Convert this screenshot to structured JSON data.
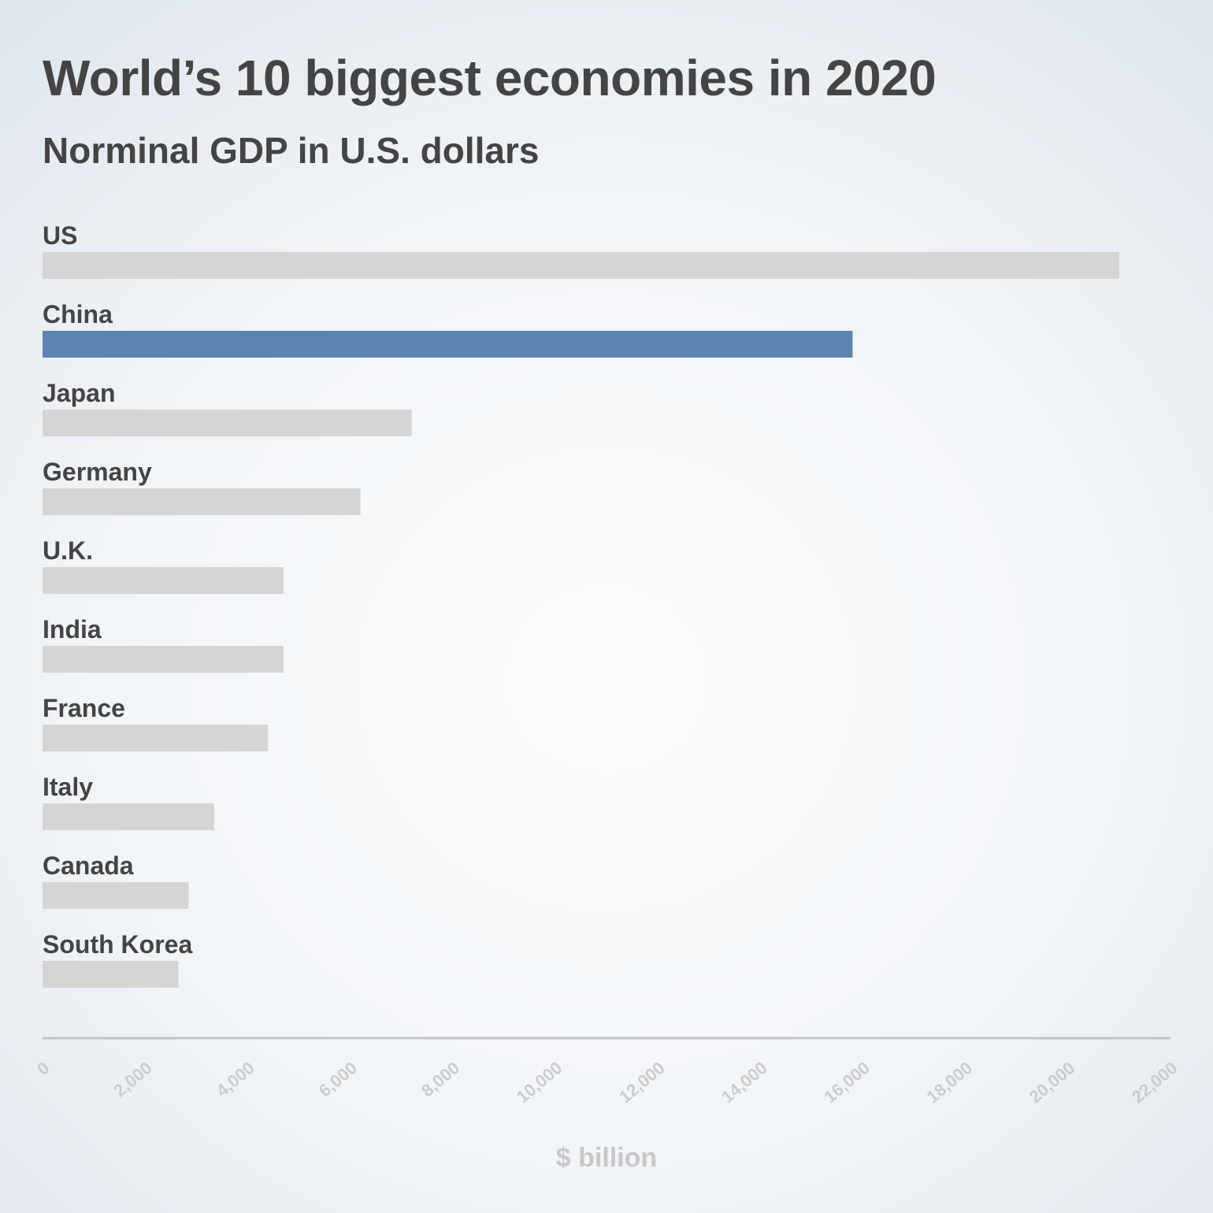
{
  "chart_data": {
    "type": "bar",
    "orientation": "horizontal",
    "title": "World’s 10 biggest economies in 2020",
    "subtitle": "Norminal GDP in U.S. dollars",
    "xlabel": "$ billion",
    "ylabel": "",
    "categories": [
      "US",
      "China",
      "Japan",
      "Germany",
      "U.K.",
      "India",
      "France",
      "Italy",
      "Canada",
      "South Korea"
    ],
    "values": [
      21000,
      15800,
      7200,
      6200,
      4700,
      4700,
      4400,
      3350,
      2850,
      2650
    ],
    "highlight_category": "China",
    "xlim": [
      0,
      22000
    ],
    "xticks": [
      0,
      2000,
      4000,
      6000,
      8000,
      10000,
      12000,
      14000,
      16000,
      18000,
      20000,
      22000
    ],
    "xtick_labels": [
      "0",
      "2,000",
      "4,000",
      "6,000",
      "8,000",
      "10,000",
      "12,000",
      "14,000",
      "16,000",
      "18,000",
      "20,000",
      "22,000"
    ],
    "grid": false,
    "legend": "none",
    "colors": {
      "bar": "#d5d5d5",
      "highlight": "#5b84b0",
      "axis": "#c4c4c4"
    }
  }
}
